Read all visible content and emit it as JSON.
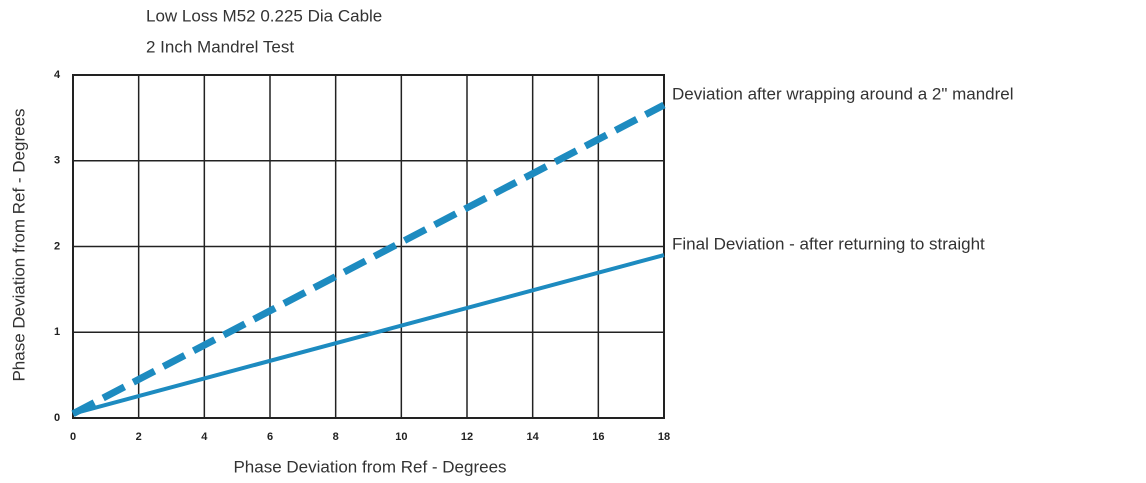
{
  "chart_data": {
    "type": "line",
    "title": "Low Loss M52 0.225 Dia Cable",
    "subtitle": "2 Inch Mandrel Test",
    "xlabel": "Phase Deviation from Ref - Degrees",
    "ylabel": "Phase Deviation from Ref - Degrees",
    "x": [
      0,
      18
    ],
    "series": [
      {
        "name": "Deviation after wrapping around a 2\" mandrel",
        "color": "#1d8bc0",
        "dashed": true,
        "values": [
          0.05,
          3.65
        ]
      },
      {
        "name": "Final Deviation - after returning to straight",
        "color": "#1d8bc0",
        "dashed": false,
        "values": [
          0.05,
          1.9
        ]
      }
    ],
    "xlim": [
      0,
      18
    ],
    "xticks": [
      0,
      2,
      4,
      6,
      8,
      10,
      12,
      14,
      16,
      18
    ],
    "ylim": [
      0,
      4
    ],
    "yticks": [
      0,
      1,
      2,
      3,
      4
    ],
    "grid": true
  }
}
